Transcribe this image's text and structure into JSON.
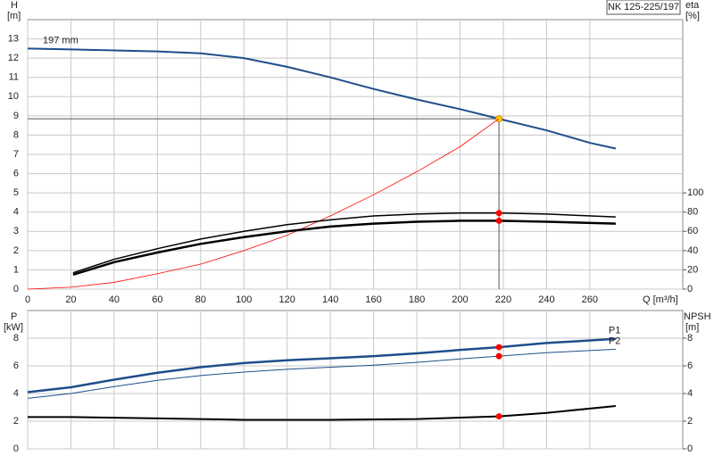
{
  "chart_data": [
    {
      "type": "line",
      "title": "NK 125-225/197",
      "ylabel": "H",
      "yunit": "[m]",
      "y2label": "eta",
      "y2unit": "[%]",
      "xlabel": "Q [m³/h]",
      "xlim": [
        0,
        303
      ],
      "xticks": [
        0,
        20,
        40,
        60,
        80,
        100,
        120,
        140,
        160,
        180,
        200,
        220,
        240,
        260
      ],
      "ylim": [
        0,
        14
      ],
      "yticks": [
        0,
        1,
        2,
        3,
        4,
        5,
        6,
        7,
        8,
        9,
        10,
        11,
        12,
        13
      ],
      "y2lim": [
        0,
        280
      ],
      "y2ticks": [
        0,
        20,
        40,
        60,
        80,
        100
      ],
      "grid": true,
      "show_xtick_labels": true,
      "highlight_x": 218,
      "series": [
        {
          "name": "197 mm",
          "color": "#1f4e8c",
          "width": 2,
          "point_color": "#ffd700",
          "x": [
            0,
            20,
            40,
            60,
            80,
            100,
            120,
            140,
            160,
            180,
            200,
            218,
            240,
            260,
            272
          ],
          "values": [
            12.5,
            12.45,
            12.4,
            12.35,
            12.25,
            12.0,
            11.55,
            11.0,
            10.4,
            9.85,
            9.35,
            8.85,
            8.25,
            7.6,
            7.3
          ]
        },
        {
          "color": "#ff0000",
          "width": 0.8,
          "x": [
            0,
            20,
            40,
            60,
            80,
            100,
            120,
            140,
            160,
            180,
            200,
            218
          ],
          "values": [
            0,
            0.1,
            0.35,
            0.8,
            1.3,
            2.0,
            2.8,
            3.8,
            4.9,
            6.1,
            7.4,
            8.85
          ]
        },
        {
          "color": "#000000",
          "width": 1.5,
          "axis": "y2",
          "point_color": "#ff0000",
          "x": [
            21,
            40,
            60,
            80,
            100,
            120,
            140,
            160,
            180,
            200,
            218,
            240,
            272
          ],
          "values": [
            17,
            31,
            42,
            52,
            60,
            67,
            72,
            76,
            78,
            79,
            79,
            78,
            75
          ]
        },
        {
          "color": "#000000",
          "width": 2.5,
          "axis": "y2",
          "point_color": "#ff0000",
          "x": [
            21,
            40,
            60,
            80,
            100,
            120,
            140,
            160,
            180,
            200,
            218,
            240,
            272
          ],
          "values": [
            15,
            28,
            38,
            47,
            54,
            60,
            65,
            68,
            70,
            71,
            71,
            70,
            68
          ]
        }
      ]
    },
    {
      "type": "line",
      "ylabel": "P",
      "yunit": "[kW]",
      "y2label": "NPSH",
      "y2unit": "[m]",
      "xlim": [
        0,
        303
      ],
      "xticks": [
        0,
        20,
        40,
        60,
        80,
        100,
        120,
        140,
        160,
        180,
        200,
        220,
        240,
        260
      ],
      "ylim": [
        0,
        10
      ],
      "yticks": [
        0,
        2,
        4,
        6,
        8
      ],
      "y2lim": [
        0,
        10
      ],
      "y2ticks": [
        0,
        2,
        4,
        6,
        8
      ],
      "grid": true,
      "show_xtick_labels": false,
      "highlight_x": 218,
      "series": [
        {
          "name": "P1",
          "color": "#1f4e8c",
          "width": 2.5,
          "point_color": "#ff0000",
          "x": [
            0,
            20,
            40,
            60,
            80,
            100,
            120,
            140,
            160,
            180,
            200,
            218,
            240,
            272
          ],
          "values": [
            4.1,
            4.45,
            5.0,
            5.5,
            5.9,
            6.2,
            6.4,
            6.55,
            6.7,
            6.9,
            7.15,
            7.35,
            7.65,
            7.95
          ]
        },
        {
          "name": "P2",
          "color": "#1f4e8c",
          "width": 1,
          "point_color": "#ff0000",
          "x": [
            0,
            20,
            40,
            60,
            80,
            100,
            120,
            140,
            160,
            180,
            200,
            218,
            240,
            272
          ],
          "values": [
            3.65,
            4.0,
            4.5,
            4.95,
            5.3,
            5.55,
            5.75,
            5.9,
            6.05,
            6.25,
            6.5,
            6.7,
            6.95,
            7.2
          ]
        },
        {
          "color": "#000000",
          "width": 2,
          "axis": "y2",
          "point_color": "#ff0000",
          "x": [
            0,
            20,
            60,
            100,
            140,
            180,
            218,
            240,
            272
          ],
          "values": [
            2.3,
            2.3,
            2.2,
            2.1,
            2.1,
            2.15,
            2.35,
            2.6,
            3.1
          ]
        }
      ]
    }
  ]
}
